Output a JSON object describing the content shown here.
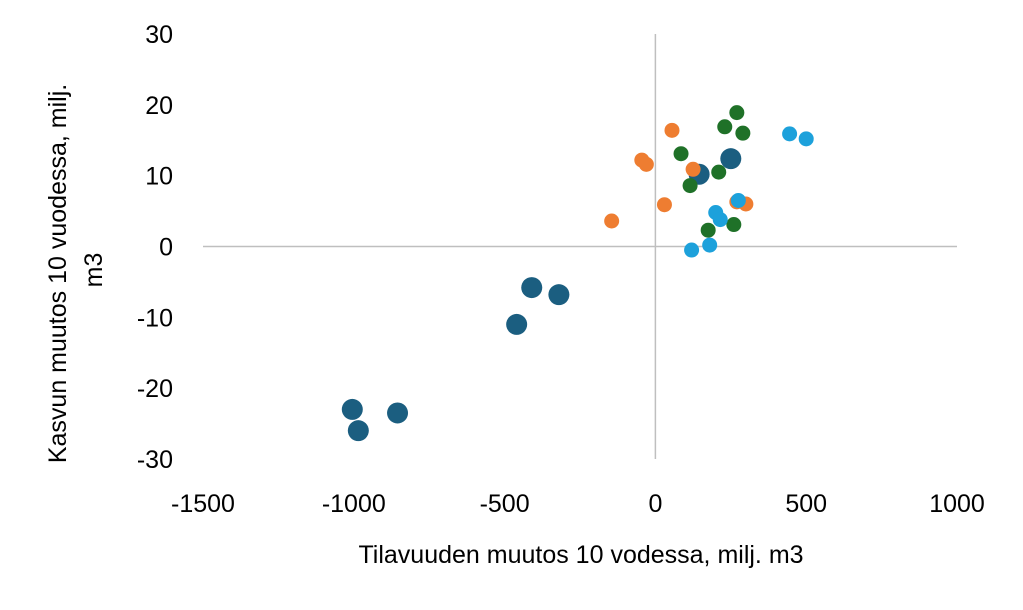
{
  "chart_data": {
    "type": "scatter",
    "title": "",
    "xlabel": "Tilavuuden muutos 10 vodessa, milj. m3",
    "ylabel_lines": [
      "Kasvun muutos 10 vuodessa, milj.",
      "m3"
    ],
    "xlim": [
      -1500,
      1000
    ],
    "ylim": [
      -30,
      30
    ],
    "xticks": [
      -1500,
      -1000,
      -500,
      0,
      500,
      1000
    ],
    "yticks": [
      -30,
      -20,
      -10,
      0,
      10,
      20,
      30
    ],
    "grid": false,
    "legend": "none",
    "series": [
      {
        "color": "#1b5e80",
        "marker": "large",
        "points": [
          [
            -1005,
            -23.0
          ],
          [
            -985,
            -26.0
          ],
          [
            -855,
            -23.5
          ],
          [
            -460,
            -11.0
          ],
          [
            -410,
            -5.8
          ],
          [
            -320,
            -6.8
          ],
          [
            145,
            10.2
          ],
          [
            250,
            12.4
          ]
        ]
      },
      {
        "color": "#ee7d31",
        "marker": "small",
        "points": [
          [
            -145,
            3.6
          ],
          [
            -45,
            12.2
          ],
          [
            -30,
            11.6
          ],
          [
            30,
            5.9
          ],
          [
            55,
            16.4
          ],
          [
            125,
            10.9
          ],
          [
            270,
            6.3
          ],
          [
            300,
            6.0
          ]
        ]
      },
      {
        "color": "#1f7128",
        "marker": "small",
        "points": [
          [
            85,
            13.1
          ],
          [
            115,
            8.6
          ],
          [
            175,
            2.3
          ],
          [
            210,
            10.5
          ],
          [
            230,
            16.9
          ],
          [
            260,
            3.1
          ],
          [
            270,
            18.9
          ],
          [
            290,
            16.0
          ]
        ]
      },
      {
        "color": "#1da1db",
        "marker": "small",
        "points": [
          [
            120,
            -0.5
          ],
          [
            180,
            0.2
          ],
          [
            200,
            4.8
          ],
          [
            215,
            3.8
          ],
          [
            275,
            6.5
          ],
          [
            445,
            15.9
          ],
          [
            500,
            15.2
          ]
        ]
      }
    ]
  }
}
